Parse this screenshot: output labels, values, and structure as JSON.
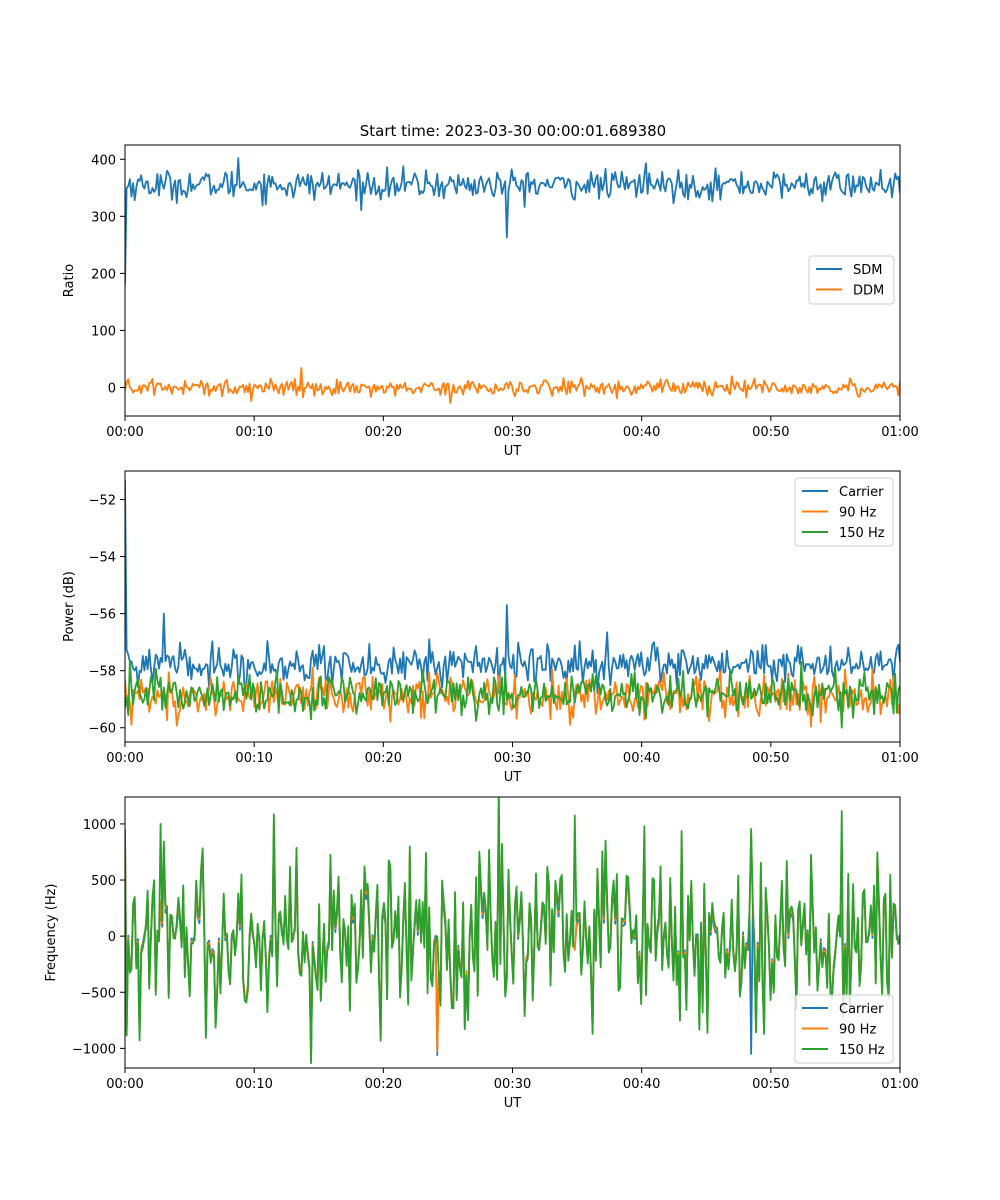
{
  "figure": {
    "title": "Start time: 2023-03-30 00:00:01.689380"
  },
  "colors": {
    "blue": "#1f77b4",
    "orange": "#ff7f0e",
    "green": "#2ca02c"
  },
  "chart_data": [
    {
      "type": "line",
      "title": "Start time: 2023-03-30 00:00:01.689380",
      "xlabel": "UT",
      "ylabel": "Ratio",
      "xlim": [
        0,
        60
      ],
      "ylim": [
        -50,
        425
      ],
      "xticks": [
        0,
        10,
        20,
        30,
        40,
        50,
        60
      ],
      "xtick_labels": [
        "00:00",
        "00:10",
        "00:20",
        "00:30",
        "00:40",
        "00:50",
        "01:00"
      ],
      "yticks": [
        0,
        100,
        200,
        300,
        400
      ],
      "ytick_labels": [
        "0",
        "100",
        "200",
        "300",
        "400"
      ],
      "legend_position": "center-right",
      "grid": false,
      "series": [
        {
          "name": "SDM",
          "color": "#1f77b4",
          "baseline": 355,
          "noise": 14,
          "start": 180,
          "spikes": [
            {
              "x": 8.8,
              "y": 402
            },
            {
              "x": 29.5,
              "y": 263
            },
            {
              "x": 40.3,
              "y": 393
            }
          ]
        },
        {
          "name": "DDM",
          "color": "#ff7f0e",
          "baseline": 0,
          "noise": 8,
          "start": -5,
          "spikes": [
            {
              "x": 13.7,
              "y": 34
            },
            {
              "x": 25.2,
              "y": -27
            }
          ]
        }
      ]
    },
    {
      "type": "line",
      "title": "",
      "xlabel": "UT",
      "ylabel": "Power (dB)",
      "xlim": [
        0,
        60
      ],
      "ylim": [
        -60.5,
        -51
      ],
      "xticks": [
        0,
        10,
        20,
        30,
        40,
        50,
        60
      ],
      "xtick_labels": [
        "00:00",
        "00:10",
        "00:20",
        "00:30",
        "00:40",
        "00:50",
        "01:00"
      ],
      "yticks": [
        -60,
        -58,
        -56,
        -54,
        -52
      ],
      "ytick_labels": [
        "−60",
        "−58",
        "−56",
        "−54",
        "−52"
      ],
      "legend_position": "upper-right",
      "grid": false,
      "series": [
        {
          "name": "Carrier",
          "color": "#1f77b4",
          "baseline": -57.8,
          "noise": 0.35,
          "start": -51.3,
          "spikes": [
            {
              "x": 3.0,
              "y": -56.0
            },
            {
              "x": 23.5,
              "y": -56.9
            },
            {
              "x": 29.5,
              "y": -55.7
            },
            {
              "x": 41.0,
              "y": -57.0
            }
          ]
        },
        {
          "name": "90 Hz",
          "color": "#ff7f0e",
          "baseline": -58.9,
          "noise": 0.4,
          "start": -58.3,
          "spikes": [
            {
              "x": 0.5,
              "y": -59.9
            },
            {
              "x": 34.5,
              "y": -59.9
            }
          ]
        },
        {
          "name": "150 Hz",
          "color": "#2ca02c",
          "baseline": -58.8,
          "noise": 0.4,
          "start": -59.3,
          "spikes": [
            {
              "x": 55.5,
              "y": -60.0
            }
          ]
        }
      ]
    },
    {
      "type": "line",
      "title": "",
      "xlabel": "UT",
      "ylabel": "Frequency (Hz)",
      "xlim": [
        0,
        60
      ],
      "ylim": [
        -1175,
        1240
      ],
      "xticks": [
        0,
        10,
        20,
        30,
        40,
        50,
        60
      ],
      "xtick_labels": [
        "00:00",
        "00:10",
        "00:20",
        "00:30",
        "00:40",
        "00:50",
        "01:00"
      ],
      "yticks": [
        -1000,
        -500,
        0,
        500,
        1000
      ],
      "ytick_labels": [
        "−1000",
        "−500",
        "0",
        "500",
        "1000"
      ],
      "legend_position": "lower-right",
      "grid": false,
      "series": [
        {
          "name": "Carrier",
          "color": "#1f77b4",
          "baseline": 0,
          "noise": 380,
          "start": 950,
          "spikes": [
            {
              "x": 24.2,
              "y": -1060
            },
            {
              "x": 48.5,
              "y": -1050
            }
          ],
          "offset": -40
        },
        {
          "name": "90 Hz",
          "color": "#ff7f0e",
          "baseline": 0,
          "noise": 380,
          "start": 950,
          "spikes": [
            {
              "x": 24.2,
              "y": -1030
            }
          ],
          "offset": -15
        },
        {
          "name": "150 Hz",
          "color": "#2ca02c",
          "baseline": 0,
          "noise": 380,
          "start": 950,
          "spikes": [
            {
              "x": 2.8,
              "y": 1000
            },
            {
              "x": 34.8,
              "y": 1075
            },
            {
              "x": 55.5,
              "y": 1115
            }
          ],
          "offset": 0
        }
      ]
    }
  ]
}
